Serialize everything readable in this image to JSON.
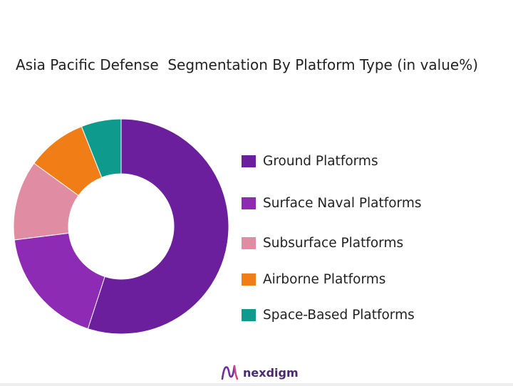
{
  "chart_data": {
    "type": "pie",
    "title": "Asia Pacific Defense  Segmentation By Platform Type (in value%)",
    "categories": [
      "Ground Platforms",
      "Surface Naval Platforms",
      "Subsurface Platforms",
      "Airborne Platforms",
      "Space-Based Platforms"
    ],
    "values": [
      55,
      18,
      12,
      9,
      6
    ],
    "colors": [
      "#6b1f9c",
      "#8e2bb4",
      "#e08ca3",
      "#f07d16",
      "#0e9a8c"
    ],
    "legend_position": "right",
    "donut": true
  },
  "brand": {
    "name": "nexdigm",
    "icon": "nexdigm-logo-icon"
  }
}
